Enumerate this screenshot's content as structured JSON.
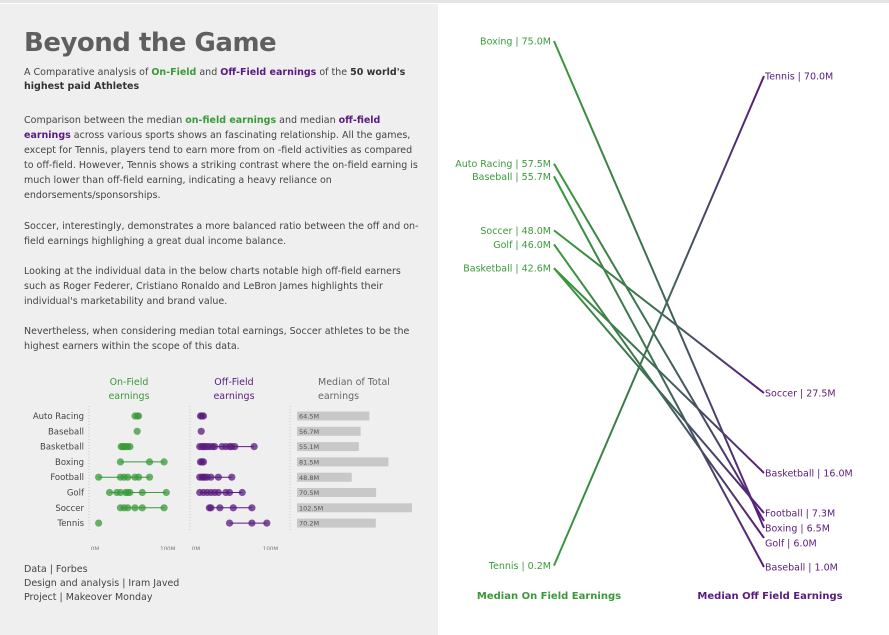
{
  "title": "Beyond the Game",
  "subtitle": {
    "pre": "A Comparative analysis of ",
    "on_field": "On-Field",
    "and": " and ",
    "off_field": "Off-Field earnings",
    "mid": " of the ",
    "top": "50 world's highest paid Athletes"
  },
  "para1": {
    "a": "Comparison between the median ",
    "on": "on-field earnings",
    "b": " and median ",
    "off": "off-field earnings",
    "c": " across various sports shows an fascinating relationship. All the games, except for Tennis, players tend to earn more from on -field activities as compared to off-field. However, Tennis shows a striking contrast where the on-field earning is much lower than off-field earning, indicating a heavy reliance on endorsements/sponsorships."
  },
  "para2": "Soccer, interestingly, demonstrates a more balanced ratio between the off and on-field earnings highlighing a great dual income balance.",
  "para3": "Looking at the individual data in the below charts notable high off-field earners such as Roger Federer, Cristiano Ronaldo and LeBron James highlights their individual's marketability and brand value.",
  "para4": "Nevertheless, when considering median total earnings, Soccer athletes to be the highest earners within the scope of this data.",
  "footer": {
    "data": "Data | Forbes",
    "design": "Design and analysis | Iram Javed",
    "project": "Project | Makeover Monday"
  },
  "colors": {
    "on_field": "#3a9a3a",
    "off_field": "#5a1b7e",
    "bar": "#c8c8c8",
    "panel": "#efefef"
  },
  "chart_data": [
    {
      "type": "scatter",
      "chart": "athlete-dot-plot",
      "columns": {
        "on_field": [
          "On-Field",
          "earnings"
        ],
        "off_field": [
          "Off-Field",
          "earnings"
        ],
        "total": [
          "Median of Total",
          "earnings"
        ]
      },
      "axis_ticks": {
        "on_field": [
          "0M",
          "100M"
        ],
        "off_field": [
          "0M",
          "100M"
        ]
      },
      "xlim": [
        0,
        110
      ],
      "sports": [
        {
          "name": "Auto Racing",
          "on": [
            55,
            58,
            60
          ],
          "off": [
            6,
            8,
            10
          ],
          "total": "64.5M",
          "total_value": 64.5
        },
        {
          "name": "Baseball",
          "on": [
            58
          ],
          "off": [
            7
          ],
          "total": "56.7M",
          "total_value": 56.7
        },
        {
          "name": "Basketball",
          "on": [
            36,
            38,
            40,
            42,
            45,
            48
          ],
          "off": [
            5,
            8,
            10,
            12,
            15,
            18,
            22,
            25,
            35,
            40,
            45,
            48,
            52,
            78
          ],
          "total": "55.1M",
          "total_value": 55.1
        },
        {
          "name": "Boxing",
          "on": [
            35,
            75,
            95
          ],
          "off": [
            6,
            8,
            10
          ],
          "total": "81.5M",
          "total_value": 81.5
        },
        {
          "name": "Football",
          "on": [
            5,
            35,
            40,
            45,
            55,
            60,
            75
          ],
          "off": [
            5,
            8,
            10,
            12,
            15,
            20,
            30,
            48
          ],
          "total": "48.8M",
          "total_value": 48.8
        },
        {
          "name": "Golf",
          "on": [
            20,
            30,
            35,
            42,
            45,
            48,
            65,
            98
          ],
          "off": [
            5,
            10,
            15,
            20,
            25,
            30,
            40,
            45,
            62
          ],
          "total": "70.5M",
          "total_value": 70.5
        },
        {
          "name": "Soccer",
          "on": [
            35,
            40,
            45,
            55,
            65,
            95
          ],
          "off": [
            18,
            20,
            32,
            50,
            75
          ],
          "total": "102.5M",
          "total_value": 102.5
        },
        {
          "name": "Tennis",
          "on": [
            5
          ],
          "off": [
            45,
            75,
            95
          ],
          "total": "70.2M",
          "total_value": 70.2
        }
      ]
    },
    {
      "type": "line",
      "chart": "slope-chart",
      "xlabel_left": "Median On Field Earnings",
      "xlabel_right": "Median Off Field Earnings",
      "ylim": [
        0,
        75
      ],
      "series": [
        {
          "name": "Boxing",
          "on": 75.0,
          "off": 6.5,
          "on_label": "Boxing | 75.0M",
          "off_label": "Boxing | 6.5M",
          "color": "#3d6b55"
        },
        {
          "name": "Tennis",
          "on": 0.2,
          "off": 70.0,
          "on_label": "Tennis | 0.2M",
          "off_label": "Tennis | 70.0M",
          "color": "#3d6b55"
        },
        {
          "name": "Auto Racing",
          "on": 57.5,
          "off": 6.5,
          "on_label": "Auto Racing | 57.5M",
          "off_label": "",
          "color": "#3d6b55"
        },
        {
          "name": "Baseball",
          "on": 55.7,
          "off": 1.0,
          "on_label": "Baseball | 55.7M",
          "off_label": "Baseball | 1.0M",
          "color": "#3d6b55"
        },
        {
          "name": "Soccer",
          "on": 48.0,
          "off": 27.5,
          "on_label": "Soccer | 48.0M",
          "off_label": "Soccer | 27.5M",
          "color": "#3d6b55"
        },
        {
          "name": "Golf",
          "on": 46.0,
          "off": 6.0,
          "on_label": "Golf | 46.0M",
          "off_label": "Golf | 6.0M",
          "color": "#3d6b55"
        },
        {
          "name": "Basketball",
          "on": 42.6,
          "off": 16.0,
          "on_label": "Basketball | 42.6M",
          "off_label": "Basketball | 16.0M",
          "color": "#3d6b55"
        },
        {
          "name": "Football",
          "on": 42.6,
          "off": 7.3,
          "on_label": "",
          "off_label": "Football | 7.3M",
          "color": "#3d6b55"
        }
      ]
    }
  ]
}
